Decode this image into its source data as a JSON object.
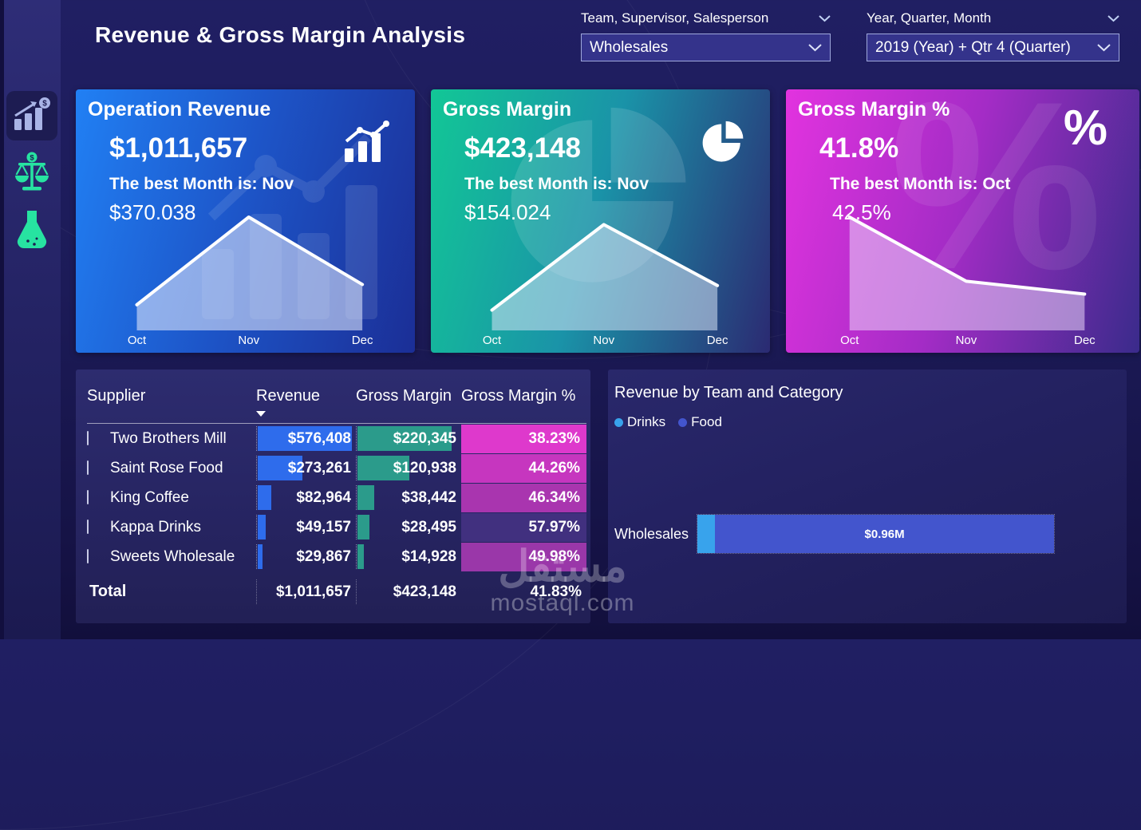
{
  "header": {
    "title": "Revenue & Gross Margin Analysis",
    "filters": [
      {
        "label": "Team, Supervisor, Salesperson",
        "value": "Wholesales"
      },
      {
        "label": "Year, Quarter, Month",
        "value": "2019 (Year) + Qtr 4 (Quarter)"
      }
    ]
  },
  "sidebar": {
    "icons": [
      "revenue-bar-chart",
      "balance-scale",
      "flask"
    ]
  },
  "kpi_cards": [
    {
      "title": "Operation Revenue",
      "value": "$1,011,657",
      "best_label": "The best Month is: Nov",
      "best_value": "$370.038",
      "months": [
        "Oct",
        "Nov",
        "Dec"
      ],
      "icon": "bar-chart-trend",
      "trend_shape": [
        0.18,
        1.0,
        0.37
      ],
      "colors": {
        "from": "#2180F4",
        "mid": "#1D55C8",
        "to": "#1B2E96"
      }
    },
    {
      "title": "Gross Margin",
      "value": "$423,148",
      "best_label": "The best Month is: Nov",
      "best_value": "$154.024",
      "months": [
        "Oct",
        "Nov",
        "Dec"
      ],
      "icon": "pie-chart",
      "trend_shape": [
        0.13,
        0.93,
        0.36
      ],
      "colors": {
        "from": "#12C796",
        "mid": "#1A93A8",
        "to": "#2B2A72"
      }
    },
    {
      "title": "Gross Margin %",
      "value": "41.8%",
      "best_label": "The best Month is: Oct",
      "best_value": "42.5%",
      "months": [
        "Oct",
        "Nov",
        "Dec"
      ],
      "icon": "percent",
      "icon_glyph": "%",
      "trend_shape": [
        1.0,
        0.4,
        0.28
      ],
      "colors": {
        "from": "#E233DF",
        "mid": "#A42CC6",
        "to": "#3A2B8B"
      }
    }
  ],
  "table": {
    "columns": [
      "Supplier",
      "Revenue",
      "Gross Margin",
      "Gross Margin %"
    ],
    "sort_column": "Revenue",
    "bar_colors": {
      "revenue": "#2E6CEC",
      "gross_margin": "#2B9B8B"
    },
    "rows": [
      {
        "supplier": "Two Brothers Mill",
        "revenue": "$576,408",
        "revenue_num": 576408,
        "gross_margin": "$220,345",
        "gross_margin_num": 220345,
        "pct": "38.23%",
        "pct_color": "#DE39CC"
      },
      {
        "supplier": "Saint Rose Food",
        "revenue": "$273,261",
        "revenue_num": 273261,
        "gross_margin": "$120,938",
        "gross_margin_num": 120938,
        "pct": "44.26%",
        "pct_color": "#C636BF"
      },
      {
        "supplier": "King Coffee",
        "revenue": "$82,964",
        "revenue_num": 82964,
        "gross_margin": "$38,442",
        "gross_margin_num": 38442,
        "pct": "46.34%",
        "pct_color": "#A935AF"
      },
      {
        "supplier": "Kappa Drinks",
        "revenue": "$49,157",
        "revenue_num": 49157,
        "gross_margin": "$28,495",
        "gross_margin_num": 28495,
        "pct": "57.97%",
        "pct_color": "#41307F"
      },
      {
        "supplier": "Sweets Wholesale",
        "revenue": "$29,867",
        "revenue_num": 29867,
        "gross_margin": "$14,928",
        "gross_margin_num": 14928,
        "pct": "49.98%",
        "pct_color": "#9A37A9"
      }
    ],
    "total": {
      "label": "Total",
      "revenue": "$1,011,657",
      "gross_margin": "$423,148",
      "pct": "41.83%"
    }
  },
  "chart_data": {
    "type": "bar",
    "title": "Revenue by Team and Category",
    "orientation": "horizontal",
    "categories": [
      "Wholesales"
    ],
    "legend": [
      "Drinks",
      "Food"
    ],
    "legend_position": "top-left",
    "units": "$M",
    "series": [
      {
        "name": "Drinks",
        "color": "#38A3EC",
        "values": [
          0.05
        ],
        "label": ""
      },
      {
        "name": "Food",
        "color": "#4355CD",
        "values": [
          0.96
        ],
        "label": "$0.96M"
      }
    ]
  },
  "watermark": {
    "logo_text": "مستقل",
    "site": "mostaql.com"
  }
}
